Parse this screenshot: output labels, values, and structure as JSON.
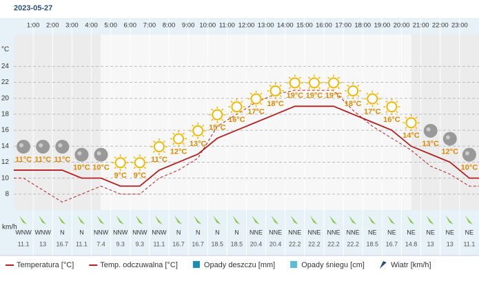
{
  "chart_data": {
    "type": "line",
    "title": "2023-05-27",
    "hour_labels": [
      "1:00",
      "2:00",
      "3:00",
      "4:00",
      "5:00",
      "6:00",
      "7:00",
      "8:00",
      "9:00",
      "10:00",
      "11:00",
      "12:00",
      "13:00",
      "14:00",
      "15:00",
      "16:00",
      "17:00",
      "18:00",
      "19:00",
      "20:00",
      "21:00",
      "22:00",
      "23:00"
    ],
    "y_unit": "°C",
    "ylim": [
      6,
      28
    ],
    "yticks": [
      8,
      10,
      12,
      14,
      16,
      18,
      20,
      22,
      24
    ],
    "grid": true,
    "series": [
      {
        "name": "Temperatura [°C]",
        "color": "#b41e1e",
        "style": "solid",
        "values": [
          11,
          11,
          11,
          10,
          10,
          9,
          9,
          11,
          12,
          13,
          15,
          16,
          17,
          18,
          19,
          19,
          19,
          18,
          17,
          16,
          14,
          13,
          12,
          10
        ],
        "value_labels": [
          "11°C",
          "11°C",
          "11°C",
          "10°C",
          "10°C",
          "9°C",
          "9°C",
          "11°C",
          "12°C",
          "13°C",
          "15°C",
          "16°C",
          "17°C",
          "18°C",
          "19°C",
          "19°C",
          "19°C",
          "18°C",
          "17°C",
          "16°C",
          "14°C",
          "13°C",
          "12°C",
          "10°C"
        ]
      },
      {
        "name": "Temp. odczuwalna [°C]",
        "color": "#b41e1e",
        "style": "dashed",
        "values": [
          10,
          8.5,
          7,
          8,
          9,
          8,
          8,
          10,
          11,
          12.5,
          16.5,
          18,
          19.5,
          20.5,
          21,
          21,
          21,
          18.5,
          16.5,
          15,
          13.5,
          11.5,
          10.5,
          9
        ]
      }
    ],
    "wind": {
      "unit": "km/h",
      "directions": [
        "WNW",
        "WNW",
        "N",
        "N",
        "NNW",
        "NNW",
        "NNW",
        "NNW",
        "N",
        "N",
        "N",
        "N",
        "NNE",
        "NNE",
        "NNE",
        "NNE",
        "NNE",
        "NNE",
        "NE",
        "NE",
        "NE",
        "NE",
        "NE",
        "NE"
      ],
      "speeds": [
        "11.1",
        "13",
        "16.7",
        "11.1",
        "7.4",
        "9.3",
        "9.3",
        "11.1",
        "16.7",
        "16.7",
        "18.5",
        "18.5",
        "20.4",
        "20.4",
        "22.2",
        "22.2",
        "22.2",
        "22.2",
        "18.5",
        "16.7",
        "14.8",
        "13",
        "13",
        "11.1"
      ]
    },
    "legend_extra": [
      {
        "name": "Opady deszczu [mm]",
        "color": "#1a8fb5"
      },
      {
        "name": "Opady śniegu [cm]",
        "color": "#5bbcd6"
      },
      {
        "name": "Wiatr [km/h]",
        "color": "#2a4f7a"
      }
    ]
  }
}
